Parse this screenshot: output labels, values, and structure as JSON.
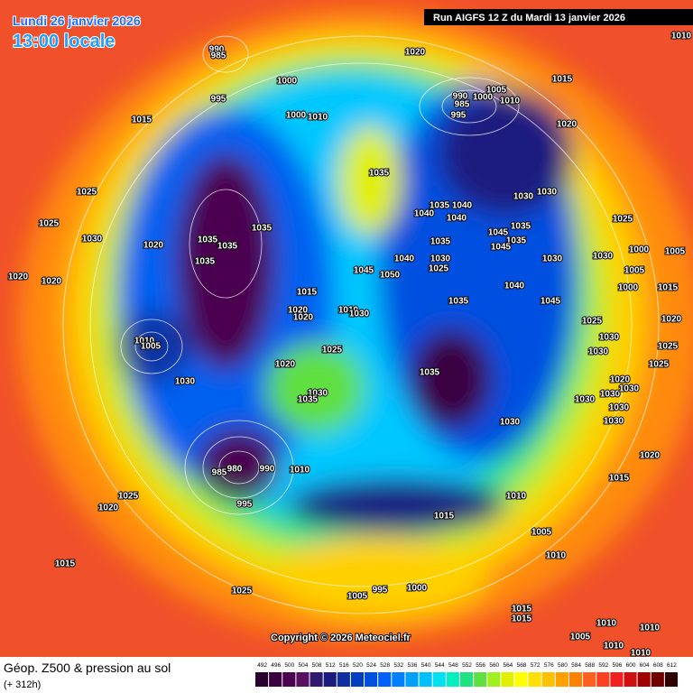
{
  "header": {
    "date": "Lundi 26 janvier 2026",
    "time": "13:00 locale",
    "run": "Run AIGFS 12 Z du Mardi 13 janvier 2026"
  },
  "copyright": "Copyright © 2026 Meteociel.fr",
  "legend": {
    "title": "Géop. Z500 & pression au sol",
    "lead": "(+ 312h)",
    "scale": {
      "values": [
        492,
        496,
        500,
        504,
        508,
        512,
        516,
        520,
        524,
        528,
        532,
        536,
        540,
        544,
        548,
        552,
        556,
        560,
        564,
        568,
        572,
        576,
        580,
        584,
        588,
        592,
        596,
        600,
        604,
        608,
        612
      ],
      "colors": [
        "#2a0030",
        "#3b0040",
        "#4b0050",
        "#5a1060",
        "#301a70",
        "#1a1a80",
        "#1030a0",
        "#0040c0",
        "#0050e0",
        "#0060ff",
        "#0080ff",
        "#00a0ff",
        "#00c0ff",
        "#00e0f0",
        "#00f0c0",
        "#20e080",
        "#60e040",
        "#a0f020",
        "#e0f000",
        "#ffff00",
        "#ffe000",
        "#ffc000",
        "#ffa000",
        "#ff8000",
        "#ff6020",
        "#ff4020",
        "#f02020",
        "#d01010",
        "#a00000",
        "#700000",
        "#300000"
      ]
    }
  },
  "map": {
    "isobar_labels": [
      "990",
      "985",
      "995",
      "1000",
      "1020",
      "1015",
      "1005",
      "1010",
      "990",
      "985",
      "1000",
      "995",
      "1020",
      "1015",
      "1000",
      "1010",
      "1025",
      "1025",
      "1030",
      "1020",
      "1035",
      "1035",
      "1035",
      "1035",
      "1035",
      "1040",
      "1035",
      "1040",
      "1040",
      "1030",
      "1030",
      "1025",
      "1035",
      "1045",
      "1035",
      "1045",
      "1035",
      "1030",
      "1025",
      "1040",
      "1045",
      "1050",
      "1030",
      "1040",
      "1030",
      "1000",
      "1005",
      "1005",
      "1000",
      "1015",
      "1020",
      "1020",
      "1010",
      "1030",
      "1035",
      "1045",
      "1020",
      "1020",
      "1010",
      "1005",
      "1025",
      "1020",
      "1030",
      "1035",
      "1030",
      "1035",
      "1030",
      "1030",
      "1020",
      "980",
      "985",
      "990",
      "995",
      "1010",
      "1025",
      "1020",
      "1015",
      "1010",
      "1005",
      "1010",
      "1015",
      "1025",
      "995",
      "1000",
      "1005",
      "1015",
      "1015",
      "1010",
      "1010",
      "1005",
      "1010",
      "1010",
      "1015",
      "1020",
      "1025",
      "1025",
      "1025",
      "1030",
      "1030",
      "1020",
      "1030",
      "1030",
      "1030",
      "1030",
      "1015",
      "1010"
    ]
  }
}
